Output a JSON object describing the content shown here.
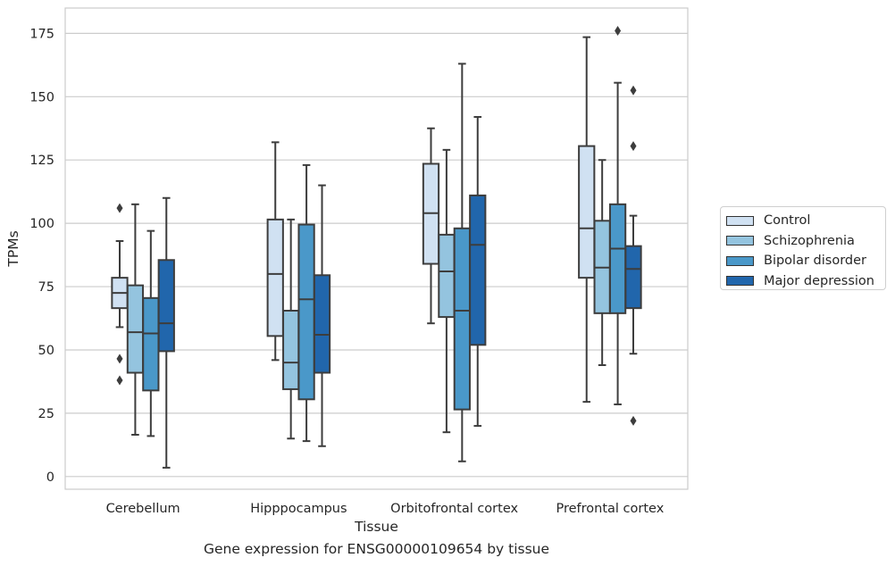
{
  "chart_data": {
    "type": "box",
    "title": "",
    "caption": "Gene expression for ENSG00000109654 by tissue",
    "xlabel": "Tissue",
    "ylabel": "TPMs",
    "ylim": [
      -5,
      185
    ],
    "yticks": [
      0,
      25,
      50,
      75,
      100,
      125,
      150,
      175
    ],
    "grid": "horizontal",
    "legend_position": "right",
    "categories": [
      "Cerebellum",
      "Hipppocampus",
      "Orbitofrontal cortex",
      "Prefrontal cortex"
    ],
    "series": [
      {
        "name": "Control",
        "color": "#d0e1f2",
        "boxes": [
          {
            "whislo": 59,
            "q1": 66.5,
            "med": 72.5,
            "q3": 78.5,
            "whishi": 93,
            "fliers": [
              106,
              46.5,
              38
            ]
          },
          {
            "whislo": 46,
            "q1": 55.5,
            "med": 80,
            "q3": 101.5,
            "whishi": 132,
            "fliers": []
          },
          {
            "whislo": 60.5,
            "q1": 84,
            "med": 104,
            "q3": 123.5,
            "whishi": 137.5,
            "fliers": []
          },
          {
            "whislo": 29.5,
            "q1": 78.5,
            "med": 98,
            "q3": 130.5,
            "whishi": 173.5,
            "fliers": []
          }
        ]
      },
      {
        "name": "Schizophrenia",
        "color": "#94c4df",
        "boxes": [
          {
            "whislo": 16.5,
            "q1": 41,
            "med": 57,
            "q3": 75.5,
            "whishi": 107.5,
            "fliers": []
          },
          {
            "whislo": 15,
            "q1": 34.5,
            "med": 45,
            "q3": 65.5,
            "whishi": 101.5,
            "fliers": []
          },
          {
            "whislo": 17.5,
            "q1": 63,
            "med": 81,
            "q3": 95.5,
            "whishi": 129,
            "fliers": []
          },
          {
            "whislo": 44,
            "q1": 64.5,
            "med": 82.5,
            "q3": 101,
            "whishi": 125,
            "fliers": []
          }
        ]
      },
      {
        "name": "Bipolar disorder",
        "color": "#4a98c9",
        "boxes": [
          {
            "whislo": 16,
            "q1": 34,
            "med": 56.5,
            "q3": 70.5,
            "whishi": 97,
            "fliers": []
          },
          {
            "whislo": 14,
            "q1": 30.5,
            "med": 70,
            "q3": 99.5,
            "whishi": 123,
            "fliers": []
          },
          {
            "whislo": 6,
            "q1": 26.5,
            "med": 65.5,
            "q3": 98,
            "whishi": 163,
            "fliers": []
          },
          {
            "whislo": 28.5,
            "q1": 64.5,
            "med": 90,
            "q3": 107.5,
            "whishi": 155.5,
            "fliers": [
              176
            ]
          }
        ]
      },
      {
        "name": "Major depression",
        "color": "#2166ac",
        "boxes": [
          {
            "whislo": 3.5,
            "q1": 49.5,
            "med": 60.5,
            "q3": 85.5,
            "whishi": 110,
            "fliers": []
          },
          {
            "whislo": 12,
            "q1": 41,
            "med": 56,
            "q3": 79.5,
            "whishi": 115,
            "fliers": []
          },
          {
            "whislo": 20,
            "q1": 52,
            "med": 91.5,
            "q3": 111,
            "whishi": 142,
            "fliers": []
          },
          {
            "whislo": 48.5,
            "q1": 66.5,
            "med": 82,
            "q3": 91,
            "whishi": 103,
            "fliers": [
              152.5,
              130.5,
              22
            ]
          }
        ]
      }
    ]
  }
}
